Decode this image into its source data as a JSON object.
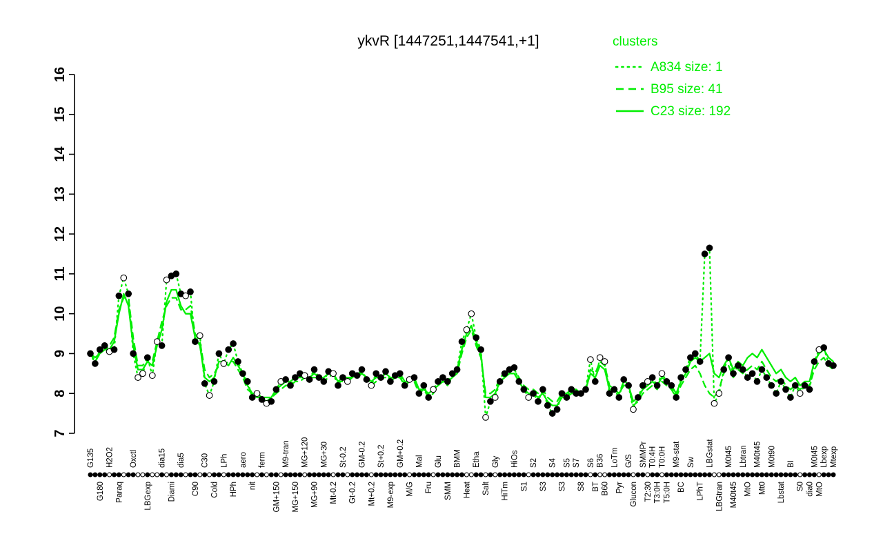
{
  "title": "ykvR [1447251,1447541,+1]",
  "legend": {
    "title": "clusters",
    "color": "#00ee00",
    "entries": [
      {
        "label": "A834 size: 1",
        "style": "dotted"
      },
      {
        "label": "B95 size: 41",
        "style": "dashed"
      },
      {
        "label": "C23 size: 192",
        "style": "solid"
      }
    ]
  },
  "chart_data": {
    "type": "line",
    "title": "ykvR [1447251,1447541,+1]",
    "xlabel": "",
    "ylabel": "",
    "ylim": [
      7,
      16
    ],
    "yticks": [
      7,
      8,
      9,
      10,
      11,
      12,
      13,
      14,
      15,
      16
    ],
    "grid": false,
    "legend_position": "top-right",
    "point_color": "#000000",
    "line_color": "#00ee00",
    "points": {
      "y": [
        9.0,
        8.75,
        9.1,
        9.2,
        9.05,
        9.1,
        10.45,
        10.9,
        10.5,
        9.0,
        8.4,
        8.5,
        8.9,
        8.45,
        9.3,
        9.2,
        10.85,
        10.95,
        11.0,
        10.5,
        10.45,
        10.55,
        9.3,
        9.45,
        8.25,
        7.95,
        8.3,
        9.0,
        8.75,
        9.1,
        9.25,
        8.8,
        8.5,
        8.3,
        7.9,
        8.0,
        7.85,
        7.75,
        7.8,
        8.1,
        8.3,
        8.35,
        8.2,
        8.4,
        8.5,
        8.45,
        8.35,
        8.6,
        8.4,
        8.3,
        8.55,
        8.5,
        8.2,
        8.4,
        8.3,
        8.5,
        8.45,
        8.6,
        8.35,
        8.2,
        8.5,
        8.4,
        8.55,
        8.3,
        8.45,
        8.5,
        8.2,
        8.35,
        8.4,
        8.0,
        8.2,
        7.9,
        8.1,
        8.3,
        8.4,
        8.3,
        8.5,
        8.6,
        9.3,
        9.6,
        10.0,
        9.4,
        9.1,
        7.4,
        7.8,
        7.9,
        8.3,
        8.5,
        8.6,
        8.65,
        8.3,
        8.1,
        7.9,
        8.0,
        7.8,
        8.1,
        7.7,
        7.5,
        7.6,
        8.0,
        7.9,
        8.1,
        8.0,
        8.0,
        8.1,
        8.85,
        8.3,
        8.9,
        8.8,
        8.0,
        8.1,
        7.9,
        8.35,
        8.2,
        7.6,
        7.9,
        8.2,
        8.3,
        8.4,
        8.2,
        8.5,
        8.3,
        8.2,
        7.9,
        8.4,
        8.6,
        8.9,
        9.0,
        8.8,
        11.5,
        11.65,
        7.75,
        8.0,
        8.6,
        8.9,
        8.5,
        8.7,
        8.6,
        8.4,
        8.5,
        8.3,
        8.6,
        8.4,
        8.2,
        8.0,
        8.3,
        8.1,
        7.9,
        8.2,
        8.0,
        8.2,
        8.1,
        8.8,
        9.1,
        9.15,
        8.75,
        8.7
      ],
      "open": [
        0,
        0,
        0,
        0,
        1,
        0,
        0,
        1,
        0,
        0,
        1,
        1,
        0,
        1,
        1,
        0,
        1,
        0,
        0,
        0,
        1,
        0,
        0,
        1,
        0,
        1,
        0,
        0,
        1,
        0,
        0,
        0,
        0,
        0,
        0,
        1,
        0,
        1,
        0,
        0,
        1,
        0,
        0,
        0,
        0,
        1,
        0,
        0,
        0,
        0,
        0,
        1,
        0,
        0,
        1,
        0,
        0,
        0,
        0,
        1,
        0,
        0,
        0,
        0,
        0,
        0,
        0,
        1,
        0,
        0,
        0,
        0,
        1,
        0,
        0,
        0,
        0,
        0,
        0,
        1,
        1,
        0,
        0,
        1,
        0,
        1,
        0,
        0,
        0,
        0,
        0,
        0,
        1,
        0,
        0,
        0,
        0,
        0,
        0,
        0,
        0,
        0,
        0,
        0,
        0,
        1,
        0,
        1,
        1,
        0,
        0,
        0,
        0,
        0,
        1,
        0,
        0,
        1,
        0,
        0,
        1,
        0,
        0,
        0,
        0,
        0,
        0,
        0,
        0,
        0,
        0,
        1,
        1,
        0,
        0,
        0,
        0,
        0,
        0,
        0,
        0,
        0,
        0,
        0,
        0,
        0,
        0,
        0,
        0,
        1,
        0,
        0,
        0,
        1,
        0,
        0,
        0
      ]
    },
    "series": [
      {
        "name": "A834",
        "size": 1,
        "style": "dotted",
        "source": "points"
      },
      {
        "name": "B95",
        "size": 41,
        "style": "dashed",
        "values": [
          9.0,
          8.8,
          9.0,
          9.1,
          9.2,
          9.4,
          10.1,
          10.4,
          10.4,
          9.4,
          8.7,
          8.7,
          8.9,
          8.8,
          9.3,
          9.8,
          10.2,
          10.4,
          10.4,
          10.1,
          10.1,
          10.2,
          9.5,
          9.3,
          8.6,
          8.4,
          8.5,
          8.7,
          8.7,
          8.8,
          8.8,
          8.6,
          8.4,
          8.1,
          8.0,
          7.9,
          7.9,
          7.8,
          7.9,
          8.0,
          8.1,
          8.2,
          8.2,
          8.3,
          8.3,
          8.4,
          8.4,
          8.4,
          8.4,
          8.3,
          8.4,
          8.5,
          8.3,
          8.3,
          8.3,
          8.4,
          8.4,
          8.5,
          8.4,
          8.2,
          8.3,
          8.4,
          8.4,
          8.3,
          8.4,
          8.4,
          8.2,
          8.3,
          8.3,
          8.0,
          8.1,
          7.9,
          8.0,
          8.2,
          8.3,
          8.2,
          8.4,
          8.5,
          9.0,
          9.4,
          9.6,
          9.2,
          8.9,
          8.0,
          8.0,
          8.1,
          8.4,
          8.5,
          8.6,
          8.6,
          8.4,
          8.2,
          8.1,
          8.1,
          8.0,
          8.1,
          7.9,
          7.8,
          7.8,
          8.0,
          8.0,
          8.1,
          8.1,
          8.0,
          8.1,
          8.6,
          8.5,
          8.8,
          8.7,
          8.2,
          8.1,
          8.0,
          8.3,
          8.2,
          7.7,
          7.8,
          8.0,
          8.1,
          8.2,
          8.1,
          8.3,
          8.2,
          8.1,
          7.9,
          8.2,
          8.4,
          8.6,
          8.7,
          8.5,
          8.2,
          8.0,
          7.9,
          8.1,
          8.5,
          8.7,
          8.4,
          8.6,
          8.5,
          8.6,
          8.7,
          8.6,
          8.8,
          8.6,
          8.4,
          8.3,
          8.4,
          8.2,
          8.1,
          8.2,
          8.1,
          8.2,
          8.2,
          8.6,
          8.8,
          8.9,
          8.7,
          8.6
        ]
      },
      {
        "name": "C23",
        "size": 192,
        "style": "solid",
        "values": [
          9.0,
          8.9,
          9.0,
          9.1,
          9.1,
          9.3,
          10.0,
          10.5,
          10.2,
          9.2,
          8.6,
          8.6,
          8.8,
          8.7,
          9.2,
          9.6,
          10.3,
          10.6,
          10.6,
          10.2,
          10.0,
          10.0,
          9.4,
          9.2,
          8.4,
          8.3,
          8.4,
          8.8,
          8.8,
          8.7,
          8.9,
          8.7,
          8.5,
          8.2,
          8.0,
          8.0,
          7.9,
          7.9,
          7.9,
          8.1,
          8.2,
          8.3,
          8.3,
          8.4,
          8.4,
          8.4,
          8.4,
          8.5,
          8.4,
          8.4,
          8.5,
          8.5,
          8.3,
          8.4,
          8.4,
          8.4,
          8.5,
          8.5,
          8.4,
          8.3,
          8.4,
          8.4,
          8.5,
          8.4,
          8.4,
          8.5,
          8.3,
          8.3,
          8.4,
          8.1,
          8.1,
          8.0,
          8.1,
          8.2,
          8.3,
          8.3,
          8.4,
          8.6,
          9.1,
          9.5,
          9.7,
          9.3,
          9.0,
          7.9,
          7.9,
          8.0,
          8.3,
          8.4,
          8.5,
          8.5,
          8.3,
          8.1,
          8.0,
          8.0,
          7.9,
          8.0,
          7.8,
          7.7,
          7.7,
          7.9,
          7.9,
          8.0,
          8.0,
          8.0,
          8.1,
          8.5,
          8.4,
          8.7,
          8.6,
          8.1,
          8.1,
          8.0,
          8.2,
          8.2,
          7.8,
          7.9,
          8.1,
          8.2,
          8.3,
          8.2,
          8.4,
          8.3,
          8.2,
          8.0,
          8.3,
          8.5,
          8.8,
          8.9,
          8.8,
          8.9,
          9.0,
          8.5,
          8.4,
          8.7,
          8.9,
          8.6,
          8.8,
          8.7,
          8.9,
          9.0,
          8.9,
          9.1,
          8.9,
          8.7,
          8.5,
          8.6,
          8.4,
          8.3,
          8.4,
          8.2,
          8.3,
          8.3,
          8.8,
          9.0,
          9.1,
          8.9,
          8.8
        ]
      }
    ],
    "x_labels": [
      {
        "text": "G135",
        "row": "top",
        "i": 0
      },
      {
        "text": "G180",
        "row": "bottom",
        "i": 2
      },
      {
        "text": "H2O2",
        "row": "top",
        "i": 4
      },
      {
        "text": "Paraq",
        "row": "bottom",
        "i": 6
      },
      {
        "text": "Oxctl",
        "row": "top",
        "i": 9
      },
      {
        "text": "LBGexp",
        "row": "bottom",
        "i": 12
      },
      {
        "text": "dia15",
        "row": "top",
        "i": 15
      },
      {
        "text": "Diami",
        "row": "bottom",
        "i": 17
      },
      {
        "text": "dia5",
        "row": "top",
        "i": 19
      },
      {
        "text": "C90",
        "row": "bottom",
        "i": 22
      },
      {
        "text": "C30",
        "row": "top",
        "i": 24
      },
      {
        "text": "Cold",
        "row": "bottom",
        "i": 26
      },
      {
        "text": "LPh",
        "row": "top",
        "i": 28
      },
      {
        "text": "HPh",
        "row": "bottom",
        "i": 30
      },
      {
        "text": "aero",
        "row": "top",
        "i": 32
      },
      {
        "text": "nit",
        "row": "bottom",
        "i": 34
      },
      {
        "text": "ferm",
        "row": "top",
        "i": 36
      },
      {
        "text": "GM+150",
        "row": "bottom",
        "i": 39
      },
      {
        "text": "M9-tran",
        "row": "top",
        "i": 41
      },
      {
        "text": "MG+150",
        "row": "bottom",
        "i": 43
      },
      {
        "text": "MG+120",
        "row": "top",
        "i": 45
      },
      {
        "text": "MG+90",
        "row": "bottom",
        "i": 47
      },
      {
        "text": "MG+30",
        "row": "top",
        "i": 49
      },
      {
        "text": "Mt-0.2",
        "row": "bottom",
        "i": 51
      },
      {
        "text": "St-0.2",
        "row": "top",
        "i": 53
      },
      {
        "text": "Gt-0.2",
        "row": "bottom",
        "i": 55
      },
      {
        "text": "GM-0.2",
        "row": "top",
        "i": 57
      },
      {
        "text": "Mt+0.2",
        "row": "bottom",
        "i": 59
      },
      {
        "text": "St+0.2",
        "row": "top",
        "i": 61
      },
      {
        "text": "M9-exp",
        "row": "bottom",
        "i": 63
      },
      {
        "text": "GM+0.2",
        "row": "top",
        "i": 65
      },
      {
        "text": "M/G",
        "row": "bottom",
        "i": 67
      },
      {
        "text": "Mal",
        "row": "top",
        "i": 69
      },
      {
        "text": "Fru",
        "row": "bottom",
        "i": 71
      },
      {
        "text": "Glu",
        "row": "top",
        "i": 73
      },
      {
        "text": "SMM",
        "row": "bottom",
        "i": 75
      },
      {
        "text": "BMM",
        "row": "top",
        "i": 77
      },
      {
        "text": "Heat",
        "row": "bottom",
        "i": 79
      },
      {
        "text": "Etha",
        "row": "top",
        "i": 81
      },
      {
        "text": "Salt",
        "row": "bottom",
        "i": 83
      },
      {
        "text": "Gly",
        "row": "top",
        "i": 85
      },
      {
        "text": "HiTm",
        "row": "bottom",
        "i": 87
      },
      {
        "text": "HiOs",
        "row": "top",
        "i": 89
      },
      {
        "text": "S1",
        "row": "bottom",
        "i": 91
      },
      {
        "text": "S2",
        "row": "top",
        "i": 93
      },
      {
        "text": "S3",
        "row": "bottom",
        "i": 95
      },
      {
        "text": "S4",
        "row": "top",
        "i": 97
      },
      {
        "text": "S3",
        "row": "bottom",
        "i": 99
      },
      {
        "text": "S5",
        "row": "top",
        "i": 100
      },
      {
        "text": "S8",
        "row": "bottom",
        "i": 103
      },
      {
        "text": "S7",
        "row": "top",
        "i": 102
      },
      {
        "text": "BT",
        "row": "bottom",
        "i": 106
      },
      {
        "text": "S6",
        "row": "top",
        "i": 105
      },
      {
        "text": "B60",
        "row": "bottom",
        "i": 108
      },
      {
        "text": "B36",
        "row": "top",
        "i": 107
      },
      {
        "text": "Pyr",
        "row": "bottom",
        "i": 111
      },
      {
        "text": "LoTm",
        "row": "top",
        "i": 110
      },
      {
        "text": "Glucon",
        "row": "bottom",
        "i": 114
      },
      {
        "text": "G/S",
        "row": "top",
        "i": 113
      },
      {
        "text": "T2:30",
        "row": "bottom",
        "i": 117
      },
      {
        "text": "SMMPr",
        "row": "top",
        "i": 116
      },
      {
        "text": "T3:0H",
        "row": "bottom",
        "i": 119
      },
      {
        "text": "T0:4H",
        "row": "top",
        "i": 118
      },
      {
        "text": "T5:0H",
        "row": "bottom",
        "i": 121
      },
      {
        "text": "T0:0H",
        "row": "top",
        "i": 120
      },
      {
        "text": "BC",
        "row": "bottom",
        "i": 124
      },
      {
        "text": "M9-stat",
        "row": "top",
        "i": 123
      },
      {
        "text": "LPhT",
        "row": "bottom",
        "i": 128
      },
      {
        "text": "Sw",
        "row": "top",
        "i": 126
      },
      {
        "text": "LBGtran",
        "row": "bottom",
        "i": 132
      },
      {
        "text": "LBGstat",
        "row": "top",
        "i": 130
      },
      {
        "text": "M40t45",
        "row": "bottom",
        "i": 135
      },
      {
        "text": "M0t45",
        "row": "top",
        "i": 134
      },
      {
        "text": "MtO",
        "row": "bottom",
        "i": 138
      },
      {
        "text": "Lbtran",
        "row": "top",
        "i": 137
      },
      {
        "text": "Mt0",
        "row": "bottom",
        "i": 141
      },
      {
        "text": "M40t45",
        "row": "top",
        "i": 140
      },
      {
        "text": "Lbstat",
        "row": "bottom",
        "i": 145
      },
      {
        "text": "M0t90",
        "row": "top",
        "i": 143
      },
      {
        "text": "S0",
        "row": "bottom",
        "i": 149
      },
      {
        "text": "BI",
        "row": "top",
        "i": 147
      },
      {
        "text": "dia0",
        "row": "bottom",
        "i": 151
      },
      {
        "text": "M0t45",
        "row": "top",
        "i": 152
      },
      {
        "text": "MtO",
        "row": "bottom",
        "i": 153
      },
      {
        "text": "Lbexp",
        "row": "top",
        "i": 154
      },
      {
        "text": "Mtexp",
        "row": "top",
        "i": 156
      }
    ]
  }
}
